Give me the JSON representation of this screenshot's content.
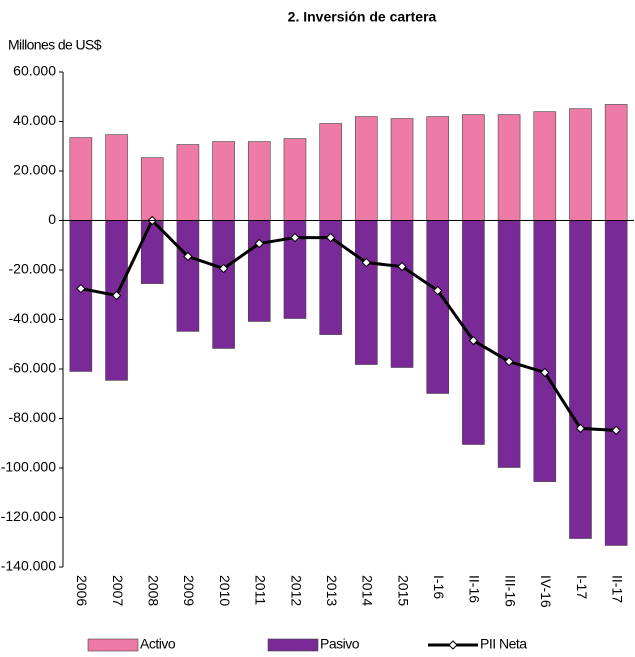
{
  "chart_data": {
    "type": "bar",
    "title": "2. Inversión de cartera",
    "y_label": "Millones de US$",
    "categories": [
      "2006",
      "2007",
      "2008",
      "2009",
      "2010",
      "2011",
      "2012",
      "2013",
      "2014",
      "2015",
      "I-16",
      "II-16",
      "III-16",
      "IV-16",
      "I-17",
      "II-17"
    ],
    "series": [
      {
        "name": "Activo",
        "type": "bar",
        "color": "#ee7aa6",
        "values": [
          33500,
          34700,
          25400,
          30700,
          31900,
          31900,
          33100,
          39200,
          42000,
          41200,
          42000,
          42800,
          42800,
          44000,
          45200,
          46900
        ]
      },
      {
        "name": "Pasivo",
        "type": "bar",
        "color": "#7a2a96",
        "values": [
          -61000,
          -64600,
          -25500,
          -44800,
          -51700,
          -40800,
          -39600,
          -46100,
          -58200,
          -59400,
          -69900,
          -90500,
          -99800,
          -105500,
          -128500,
          -131300
        ]
      },
      {
        "name": "PII Neta",
        "type": "line",
        "color": "#000000",
        "values": [
          -27500,
          -30300,
          0,
          -14500,
          -19400,
          -9300,
          -6900,
          -6900,
          -17000,
          -18600,
          -28300,
          -48500,
          -57000,
          -61400,
          -84000,
          -84800
        ]
      }
    ],
    "ylim": [
      -140000,
      60000
    ],
    "yticks": [
      {
        "value": -140000,
        "label": "-140.000"
      },
      {
        "value": -120000,
        "label": "-120.000"
      },
      {
        "value": -100000,
        "label": "-100.000"
      },
      {
        "value": -80000,
        "label": "-80.000"
      },
      {
        "value": -60000,
        "label": "-60.000"
      },
      {
        "value": -40000,
        "label": "-40.000"
      },
      {
        "value": -20000,
        "label": "-20.000"
      },
      0,
      {
        "value": 20000,
        "label": "20.000"
      },
      {
        "value": 40000,
        "label": "40.000"
      },
      {
        "value": 60000,
        "label": "60.000"
      }
    ],
    "grid": false,
    "legend": "bottom"
  }
}
